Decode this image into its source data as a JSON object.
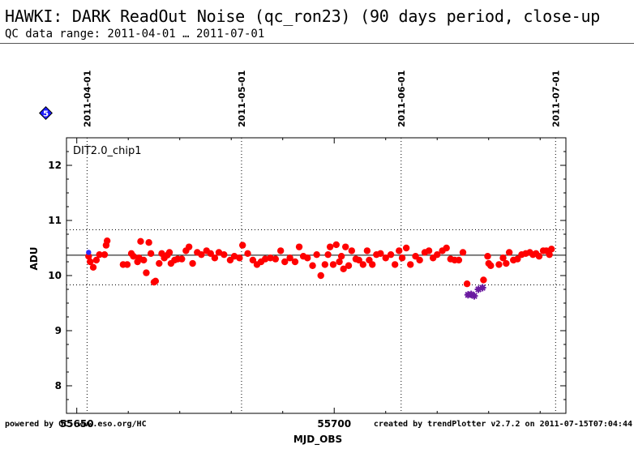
{
  "header": {
    "title": "HAWKI: DARK ReadOut Noise (qc_ron23) (90 days period, close-up",
    "subtitle": "QC data range: 2011-04-01 … 2011-07-01"
  },
  "badge": {
    "number": "5",
    "color": "#1a1aff"
  },
  "footer": {
    "left": "powered by QC: www.eso.org/HC",
    "right": "created by trendPlotter v2.7.2 on 2011-07-15T07:04:44"
  },
  "chart_data": {
    "type": "scatter",
    "panel_label": "DIT2.0_chip1",
    "xlabel": "MJD_OBS",
    "ylabel": "ADU",
    "xlim": [
      55648,
      55745
    ],
    "ylim": [
      7.5,
      12.5
    ],
    "x_ticks": [
      55650,
      55700
    ],
    "y_ticks": [
      8,
      9,
      10,
      11,
      12
    ],
    "date_markers": [
      {
        "label": "2011-04-01",
        "mjd": 55652
      },
      {
        "label": "2011-05-01",
        "mjd": 55682
      },
      {
        "label": "2011-06-01",
        "mjd": 55713
      },
      {
        "label": "2011-07-01",
        "mjd": 55743
      }
    ],
    "reference_lines": {
      "mean": 10.37,
      "upper": 10.83,
      "lower": 9.83
    },
    "colors": {
      "normal": "#ff0000",
      "outlier": "#6a1aa0",
      "blue_point": "#2a2aff"
    },
    "series": [
      {
        "marker": "circle",
        "points": [
          [
            55652.3,
            10.35
          ],
          [
            55652.6,
            10.25
          ],
          [
            55653.2,
            10.15
          ],
          [
            55653.8,
            10.28
          ],
          [
            55654.4,
            10.38
          ],
          [
            55655.4,
            10.38
          ],
          [
            55655.7,
            10.55
          ],
          [
            55655.9,
            10.63
          ],
          [
            55659.0,
            10.2
          ],
          [
            55659.8,
            10.2
          ],
          [
            55660.6,
            10.4
          ],
          [
            55661.0,
            10.35
          ],
          [
            55661.8,
            10.25
          ],
          [
            55662.1,
            10.32
          ],
          [
            55662.4,
            10.62
          ],
          [
            55663.0,
            10.28
          ],
          [
            55663.5,
            10.05
          ],
          [
            55664.0,
            10.6
          ],
          [
            55664.4,
            10.4
          ],
          [
            55665.0,
            9.88
          ],
          [
            55665.3,
            9.9
          ],
          [
            55666.0,
            10.22
          ],
          [
            55666.5,
            10.4
          ],
          [
            55667.0,
            10.32
          ],
          [
            55667.6,
            10.37
          ],
          [
            55668.0,
            10.42
          ],
          [
            55668.3,
            10.22
          ],
          [
            55669.0,
            10.28
          ],
          [
            55669.6,
            10.3
          ],
          [
            55670.4,
            10.3
          ],
          [
            55671.2,
            10.45
          ],
          [
            55671.8,
            10.52
          ],
          [
            55672.5,
            10.22
          ],
          [
            55673.4,
            10.42
          ],
          [
            55674.2,
            10.38
          ],
          [
            55675.2,
            10.45
          ],
          [
            55676.0,
            10.4
          ],
          [
            55676.8,
            10.32
          ],
          [
            55677.6,
            10.42
          ],
          [
            55678.6,
            10.38
          ],
          [
            55679.8,
            10.28
          ],
          [
            55680.6,
            10.35
          ],
          [
            55681.6,
            10.32
          ],
          [
            55682.2,
            10.55
          ],
          [
            55683.2,
            10.4
          ],
          [
            55684.2,
            10.28
          ],
          [
            55685.0,
            10.2
          ],
          [
            55685.8,
            10.25
          ],
          [
            55686.6,
            10.3
          ],
          [
            55687.6,
            10.32
          ],
          [
            55688.6,
            10.3
          ],
          [
            55689.6,
            10.45
          ],
          [
            55690.4,
            10.25
          ],
          [
            55691.4,
            10.32
          ],
          [
            55692.4,
            10.25
          ],
          [
            55693.2,
            10.52
          ],
          [
            55694.0,
            10.35
          ],
          [
            55694.8,
            10.32
          ],
          [
            55695.8,
            10.18
          ],
          [
            55696.6,
            10.38
          ],
          [
            55697.4,
            10.0
          ],
          [
            55698.2,
            10.2
          ],
          [
            55698.8,
            10.38
          ],
          [
            55699.2,
            10.52
          ],
          [
            55699.8,
            10.2
          ],
          [
            55700.4,
            10.56
          ],
          [
            55701.0,
            10.25
          ],
          [
            55701.4,
            10.35
          ],
          [
            55701.8,
            10.12
          ],
          [
            55702.2,
            10.52
          ],
          [
            55702.8,
            10.18
          ],
          [
            55703.4,
            10.45
          ],
          [
            55704.2,
            10.3
          ],
          [
            55704.8,
            10.28
          ],
          [
            55705.6,
            10.2
          ],
          [
            55706.4,
            10.45
          ],
          [
            55706.8,
            10.28
          ],
          [
            55707.4,
            10.2
          ],
          [
            55708.2,
            10.38
          ],
          [
            55709.0,
            10.4
          ],
          [
            55710.0,
            10.32
          ],
          [
            55711.0,
            10.38
          ],
          [
            55711.8,
            10.2
          ],
          [
            55712.6,
            10.45
          ],
          [
            55713.2,
            10.32
          ],
          [
            55714.0,
            10.5
          ],
          [
            55714.8,
            10.2
          ],
          [
            55715.8,
            10.35
          ],
          [
            55716.6,
            10.28
          ],
          [
            55717.6,
            10.42
          ],
          [
            55718.4,
            10.45
          ],
          [
            55719.2,
            10.32
          ],
          [
            55720.0,
            10.38
          ],
          [
            55721.0,
            10.45
          ],
          [
            55721.8,
            10.5
          ],
          [
            55722.6,
            10.3
          ],
          [
            55723.4,
            10.28
          ],
          [
            55724.2,
            10.28
          ],
          [
            55725.0,
            10.42
          ],
          [
            55725.8,
            9.85
          ],
          [
            55729.0,
            9.92
          ],
          [
            55729.8,
            10.35
          ],
          [
            55730.0,
            10.22
          ],
          [
            55730.4,
            10.18
          ],
          [
            55732.0,
            10.2
          ],
          [
            55732.8,
            10.32
          ],
          [
            55733.4,
            10.22
          ],
          [
            55734.0,
            10.42
          ],
          [
            55734.8,
            10.28
          ],
          [
            55735.6,
            10.3
          ],
          [
            55736.4,
            10.38
          ],
          [
            55737.2,
            10.4
          ],
          [
            55738.0,
            10.42
          ],
          [
            55738.6,
            10.38
          ],
          [
            55739.2,
            10.4
          ],
          [
            55739.8,
            10.35
          ],
          [
            55740.6,
            10.45
          ],
          [
            55741.2,
            10.45
          ],
          [
            55741.8,
            10.38
          ],
          [
            55742.2,
            10.48
          ]
        ]
      },
      {
        "marker": "star",
        "points": [
          [
            55726.0,
            9.65
          ],
          [
            55726.6,
            9.66
          ],
          [
            55727.2,
            9.63
          ],
          [
            55728.0,
            9.75
          ],
          [
            55728.8,
            9.78
          ]
        ]
      },
      {
        "marker": "circle-blue",
        "points": [
          [
            55652.3,
            10.42
          ]
        ]
      }
    ]
  }
}
